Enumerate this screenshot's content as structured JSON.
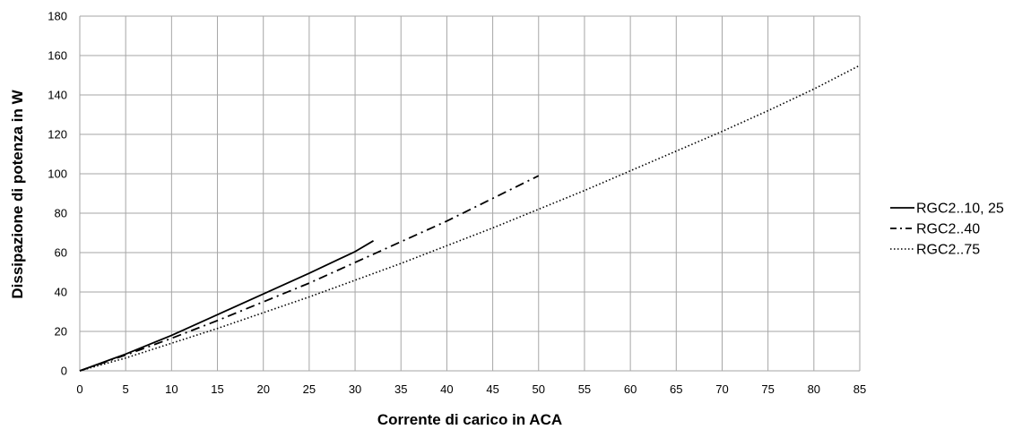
{
  "chart_data": {
    "type": "line",
    "title": "",
    "xlabel": "Corrente di carico in ACA",
    "ylabel": "Dissipazione di potenza in W",
    "xlim": [
      0,
      85
    ],
    "ylim": [
      0,
      180
    ],
    "x_ticks": [
      "0",
      "5",
      "10",
      "15",
      "20",
      "25",
      "30",
      "35",
      "40",
      "45",
      "50",
      "55",
      "60",
      "65",
      "70",
      "75",
      "80",
      "85"
    ],
    "y_ticks": [
      "0",
      "20",
      "40",
      "60",
      "80",
      "100",
      "120",
      "140",
      "160",
      "180"
    ],
    "grid": true,
    "legend_position": "right",
    "series": [
      {
        "name": "RGC2..10, 25",
        "line_style": "solid",
        "color": "#000000",
        "x": [
          0,
          5,
          10,
          15,
          20,
          25,
          30,
          32
        ],
        "y": [
          0,
          8.5,
          18,
          28.5,
          39,
          49.5,
          60.5,
          66
        ]
      },
      {
        "name": "RGC2..40",
        "line_style": "dash-dot",
        "color": "#000000",
        "x": [
          0,
          5,
          10,
          15,
          20,
          25,
          30,
          35,
          40,
          45,
          50
        ],
        "y": [
          0,
          8,
          16.5,
          25.5,
          35,
          44.5,
          55,
          65.5,
          76,
          87.5,
          99
        ]
      },
      {
        "name": "RGC2..75",
        "line_style": "dotted",
        "color": "#000000",
        "x": [
          0,
          5,
          10,
          15,
          20,
          25,
          30,
          35,
          40,
          45,
          50,
          55,
          60,
          65,
          70,
          75,
          80,
          85
        ],
        "y": [
          0,
          6.5,
          14,
          21.5,
          29.5,
          37.5,
          46,
          54.5,
          63.5,
          72.5,
          82,
          91.5,
          101.5,
          111.5,
          121.5,
          132,
          143,
          155
        ]
      }
    ]
  }
}
